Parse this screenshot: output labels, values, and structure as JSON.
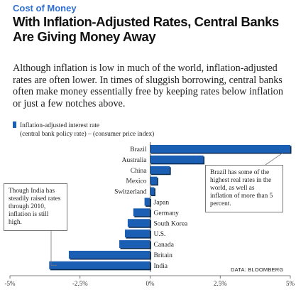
{
  "kicker": "Cost of Money",
  "headline": "With Inflation-Adjusted Rates, Central Banks Are Giving Money Away",
  "dek": "Although inflation is low in much of the world, inflation-adjusted rates are often lower. In times of sluggish borrowing, central banks often make money essentially free by keeping rates below inflation or just a few notches above.",
  "legend": {
    "label": "Inflation-adjusted interest rate",
    "sub": "(central bank policy rate) – (consumer price index)"
  },
  "notes": {
    "india": "Though India has steadily raised rates through 2010, inflation is still high.",
    "brazil": "Brazil has some of the highest real rates in the world, as well as inflation of more than 5 percent."
  },
  "source": "DATA: BLOOMBERG",
  "colors": {
    "bar_fill": "#1a5fb4",
    "bar_dark": "#0d2a4f",
    "kicker": "#2e6fd1"
  },
  "chart_data": {
    "type": "bar",
    "orientation": "horizontal",
    "categories": [
      "Brazil",
      "Australia",
      "China",
      "Mexico",
      "Switzerland",
      "Japan",
      "Germany",
      "South Korea",
      "U.S.",
      "Canada",
      "Britain",
      "India"
    ],
    "values": [
      5.0,
      1.9,
      0.7,
      0.25,
      0.15,
      -0.2,
      -0.6,
      -0.8,
      -0.9,
      -1.1,
      -2.9,
      -3.6
    ],
    "xlim": [
      -5,
      5
    ],
    "xticks": [
      "-5%",
      "-2.5%",
      "0%",
      "2.5%",
      "5%"
    ],
    "xtick_values": [
      -5,
      -2.5,
      0,
      2.5,
      5
    ],
    "unit": "%"
  }
}
